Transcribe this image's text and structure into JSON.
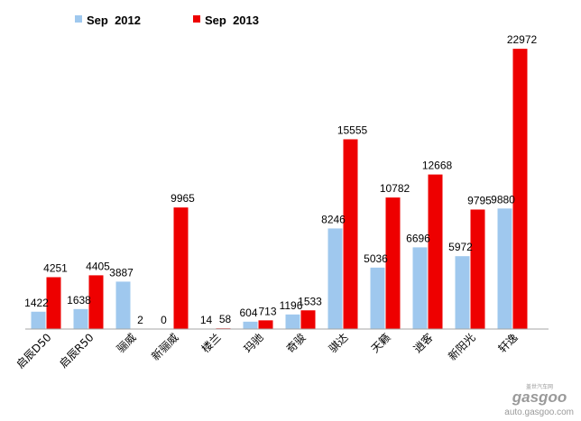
{
  "chart_data": {
    "type": "bar",
    "categories": [
      "启辰D50",
      "启辰R50",
      "骊威",
      "新骊威",
      "楼兰",
      "玛驰",
      "奇骏",
      "骐达",
      "天籁",
      "逍客",
      "新阳光",
      "轩逸"
    ],
    "series": [
      {
        "name": "Sep  2012",
        "color": "#9fc8ee",
        "values": [
          1422,
          1638,
          3887,
          0,
          14,
          604,
          1196,
          8246,
          5036,
          6696,
          5972,
          9880
        ]
      },
      {
        "name": "Sep  2013",
        "color": "#ee0000",
        "values": [
          4251,
          4405,
          2,
          9965,
          58,
          713,
          1533,
          15555,
          10782,
          12668,
          9795,
          22972
        ]
      }
    ],
    "ylim": [
      0,
      23500
    ],
    "grid": false,
    "legend": "top-left",
    "title": "",
    "xlabel": "",
    "ylabel": ""
  },
  "watermark": {
    "brand": "gasgoo",
    "tagline": "盖世汽车网",
    "url": "auto.gasgoo.com"
  }
}
